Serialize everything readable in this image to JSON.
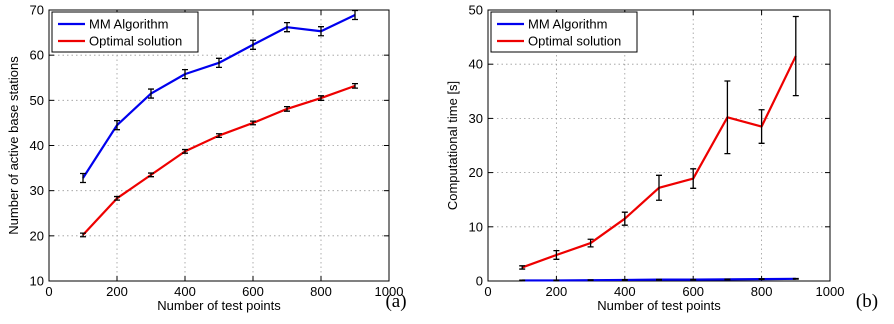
{
  "chart_data": [
    {
      "type": "line",
      "panel_label": "(a)",
      "xlabel": "Number of test points",
      "ylabel": "Number of active base stations",
      "xlim": [
        0,
        1000
      ],
      "ylim": [
        10,
        70
      ],
      "xticks": [
        0,
        200,
        400,
        600,
        800,
        1000
      ],
      "yticks": [
        10,
        20,
        30,
        40,
        50,
        60,
        70
      ],
      "grid": true,
      "legend_position": "top-left",
      "x": [
        100,
        200,
        300,
        400,
        500,
        600,
        700,
        800,
        900
      ],
      "series": [
        {
          "name": "MM Algorithm",
          "color": "#0000ee",
          "values": [
            32.8,
            44.5,
            51.5,
            55.8,
            58.3,
            62.3,
            66.2,
            65.3,
            68.9
          ],
          "errors": [
            1.0,
            1.0,
            1.0,
            1.0,
            1.0,
            1.0,
            1.0,
            1.0,
            1.0
          ]
        },
        {
          "name": "Optimal solution",
          "color": "#ee0000",
          "values": [
            20.2,
            28.3,
            33.5,
            38.7,
            42.2,
            45.0,
            48.1,
            50.5,
            53.2
          ],
          "errors": [
            0.4,
            0.4,
            0.4,
            0.4,
            0.4,
            0.4,
            0.5,
            0.5,
            0.5
          ]
        }
      ]
    },
    {
      "type": "line",
      "panel_label": "(b)",
      "xlabel": "Number of test points",
      "ylabel": "Computational time [s]",
      "xlim": [
        0,
        1000
      ],
      "ylim": [
        0,
        50
      ],
      "xticks": [
        0,
        200,
        400,
        600,
        800,
        1000
      ],
      "yticks": [
        0,
        10,
        20,
        30,
        40,
        50
      ],
      "grid": true,
      "legend_position": "top-left",
      "x": [
        100,
        200,
        300,
        400,
        500,
        600,
        700,
        800,
        900
      ],
      "series": [
        {
          "name": "MM Algorithm",
          "color": "#0000ee",
          "values": [
            0.1,
            0.1,
            0.15,
            0.2,
            0.25,
            0.25,
            0.3,
            0.35,
            0.4
          ],
          "errors": [
            0.05,
            0.05,
            0.05,
            0.05,
            0.05,
            0.05,
            0.05,
            0.05,
            0.05
          ]
        },
        {
          "name": "Optimal solution",
          "color": "#ee0000",
          "values": [
            2.5,
            4.8,
            7.0,
            11.5,
            17.2,
            18.9,
            30.2,
            28.5,
            41.5
          ],
          "errors": [
            0.3,
            0.8,
            0.7,
            1.2,
            2.3,
            1.8,
            6.7,
            3.1,
            7.3
          ]
        }
      ]
    }
  ]
}
